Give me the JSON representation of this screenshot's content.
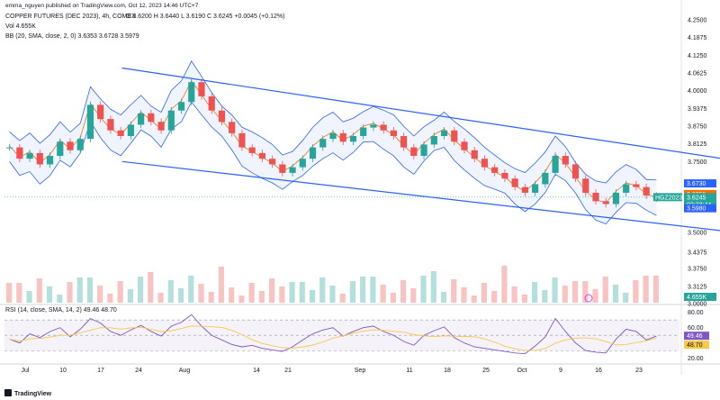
{
  "header": {
    "published": "emma_nguyen published on TradingView.com, Oct 12, 2023 14:46 UTC+7",
    "symbol": "COPPER FUTURES (DEC 2023), 4h, COMEX",
    "ohlc": "O 3.6200  H 3.6440  L 3.6190  C 3.6245  +0.0045 (+0.12%)",
    "vol": "Vol  4.655K",
    "bb": "BB (20, SMA, close, 2, 0)  3.6353  3.6728  3.5979",
    "rsi": "RSI (14, close, SMA, 14, 2)  49.46  48.70"
  },
  "colors": {
    "up": "#26a69a",
    "down": "#ef5350",
    "channel": "#2962ff",
    "bb_band": "#2962ff",
    "bb_mid": "#ff6d00",
    "rsi_line": "#7e57c2",
    "rsi_sma": "#f7c948"
  },
  "chart_data": [
    {
      "type": "candlestick",
      "title": "COPPER FUTURES (DEC 2023), 4h, COMEX",
      "x_ticks": [
        "Jul",
        "10",
        "17",
        "24",
        "Aug",
        "14",
        "21",
        "Sep",
        "11",
        "18",
        "25",
        "Oct",
        "9",
        "16",
        "23"
      ],
      "y_ticks": [
        "4.2500",
        "4.1875",
        "4.1250",
        "4.0625",
        "4.0000",
        "3.9375",
        "3.8750",
        "3.8125",
        "3.7500",
        "3.5000",
        "3.4375",
        "3.3750",
        "3.3125",
        "3.1250",
        "3.0000"
      ],
      "ylim": [
        3.0,
        4.27
      ],
      "price_labels": {
        "bb_upper": "3.6730",
        "bb_mid": "3.6355",
        "last": "3.6245",
        "symbol_tag": "HGZ2023",
        "countdown": "02:23:44",
        "bb_lower": "3.5980",
        "volume": "4.655K"
      },
      "close_path": [
        3.8,
        3.76,
        3.78,
        3.74,
        3.77,
        3.82,
        3.79,
        3.83,
        3.95,
        3.9,
        3.86,
        3.84,
        3.88,
        3.92,
        3.89,
        3.86,
        3.93,
        3.96,
        4.03,
        3.98,
        3.93,
        3.89,
        3.85,
        3.8,
        3.78,
        3.76,
        3.74,
        3.71,
        3.73,
        3.76,
        3.8,
        3.83,
        3.85,
        3.82,
        3.84,
        3.87,
        3.88,
        3.86,
        3.84,
        3.8,
        3.77,
        3.81,
        3.84,
        3.86,
        3.82,
        3.79,
        3.76,
        3.73,
        3.71,
        3.69,
        3.66,
        3.64,
        3.67,
        3.71,
        3.77,
        3.74,
        3.69,
        3.64,
        3.61,
        3.6,
        3.64,
        3.67,
        3.66,
        3.63,
        3.62
      ],
      "channel": {
        "upper": [
          [
            0,
            4.08
          ],
          [
            57,
            3.74
          ]
        ],
        "lower": [
          [
            0,
            3.75
          ],
          [
            57,
            3.49
          ]
        ]
      },
      "annotations": [
        "HGZ2023"
      ]
    },
    {
      "type": "line",
      "title": "RSI (14, close, SMA, 14, 2)",
      "y_ticks": [
        "80.00",
        "60.00",
        "40.00",
        "20.00"
      ],
      "ylim": [
        15,
        82
      ],
      "series": [
        {
          "name": "RSI",
          "last": "49.46"
        },
        {
          "name": "SMA",
          "last": "48.70"
        }
      ],
      "values": [
        45,
        40,
        52,
        47,
        55,
        60,
        48,
        58,
        72,
        66,
        55,
        50,
        57,
        63,
        55,
        49,
        62,
        67,
        77,
        62,
        50,
        44,
        38,
        35,
        37,
        33,
        31,
        29,
        35,
        44,
        52,
        57,
        60,
        49,
        55,
        60,
        62,
        55,
        50,
        42,
        37,
        50,
        56,
        61,
        47,
        40,
        35,
        33,
        31,
        29,
        27,
        26,
        36,
        48,
        72,
        55,
        40,
        30,
        28,
        27,
        45,
        58,
        55,
        44,
        49
      ]
    }
  ],
  "footer": {
    "brand": "TradingView"
  }
}
